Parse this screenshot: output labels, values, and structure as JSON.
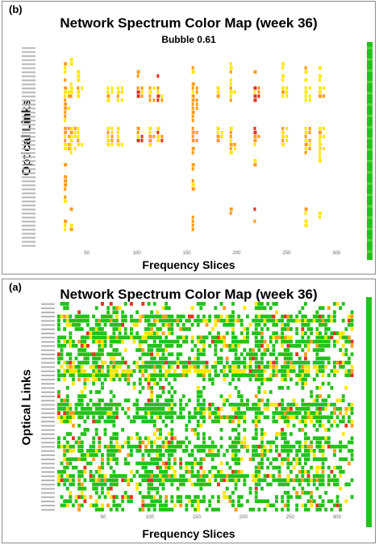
{
  "chart_data": [
    {
      "type": "heatmap",
      "panel_label": "(b)",
      "title": "Network Spectrum Color Map (week 36)",
      "subtitle": "Bubble 0.61",
      "xlabel": "Frequency Slices",
      "ylabel": "Optical Links",
      "xticks": [
        50,
        100,
        150,
        200,
        250,
        300
      ],
      "xlim": [
        1,
        320
      ],
      "row_count": 50,
      "colors": {
        "green": "#22c21b",
        "yellow": "#ffe600",
        "orange": "#ff9c1a",
        "red": "#e8321e"
      },
      "pattern": {
        "dense_rows": [
          10,
          11,
          12,
          13,
          14,
          15,
          20,
          21,
          22,
          23,
          24,
          25
        ],
        "columns": [
          {
            "x": 27,
            "rows": [
              3,
              4,
              5,
              6,
              7,
              8,
              9,
              10,
              11,
              12,
              13,
              14,
              15,
              16,
              17,
              18,
              19,
              20,
              21,
              22,
              23,
              24,
              25,
              26,
              27,
              28,
              29,
              30,
              31,
              32,
              33,
              34,
              35,
              36,
              37,
              38,
              39,
              40,
              41,
              42,
              43,
              44,
              45,
              46
            ],
            "levels": "orange-yellow"
          },
          {
            "x": 33,
            "rows": [
              3,
              4,
              5,
              6,
              8,
              9,
              10,
              11,
              12,
              20,
              21,
              22,
              23,
              24,
              25,
              26,
              40,
              41,
              43,
              44,
              45
            ],
            "levels": "yellow-orange"
          },
          {
            "x": 40,
            "rows": [
              5,
              6,
              7,
              8,
              9,
              10,
              11,
              12,
              20,
              21,
              22,
              23,
              24
            ],
            "levels": "yellow"
          },
          {
            "x": 70,
            "rows": [
              10,
              11,
              12,
              13,
              20,
              21,
              22,
              23,
              24
            ],
            "levels": "yellow"
          },
          {
            "x": 80,
            "rows": [
              10,
              11,
              12,
              13,
              20,
              21,
              22,
              23,
              24
            ],
            "levels": "yellow"
          },
          {
            "x": 100,
            "rows": [
              6,
              7,
              10,
              11,
              12,
              20,
              21,
              22,
              23
            ],
            "levels": "red-orange"
          },
          {
            "x": 112,
            "rows": [
              10,
              11,
              12,
              13,
              20,
              21,
              22,
              23,
              24
            ],
            "levels": "orange-yellow"
          },
          {
            "x": 120,
            "rows": [
              7,
              10,
              11,
              12,
              13,
              20,
              21,
              22,
              23
            ],
            "levels": "red-yellow"
          },
          {
            "x": 155,
            "rows": [
              5,
              6,
              9,
              10,
              11,
              12,
              13,
              14,
              15,
              16,
              17,
              18,
              19,
              20,
              21,
              22,
              23,
              25,
              26,
              27,
              28,
              29,
              30,
              33,
              34,
              35,
              40,
              41,
              42,
              43,
              44,
              45
            ],
            "levels": "orange"
          },
          {
            "x": 180,
            "rows": [
              10,
              11,
              12,
              20,
              21,
              22,
              23
            ],
            "levels": "yellow"
          },
          {
            "x": 193,
            "rows": [
              4,
              5,
              6,
              7,
              8,
              9,
              10,
              11,
              12,
              13,
              20,
              21,
              22,
              23,
              24,
              25,
              26,
              40,
              41,
              42,
              43,
              44
            ],
            "levels": "orange-yellow"
          },
          {
            "x": 217,
            "rows": [
              5,
              6,
              7,
              8,
              10,
              11,
              12,
              13,
              20,
              21,
              22,
              23,
              24,
              26,
              27,
              28,
              29,
              30,
              40,
              41,
              42,
              43
            ],
            "levels": "red-orange"
          },
          {
            "x": 245,
            "rows": [
              4,
              5,
              6,
              7,
              8,
              10,
              11,
              12,
              20,
              21,
              22,
              23,
              24
            ],
            "levels": "yellow"
          },
          {
            "x": 268,
            "rows": [
              5,
              6,
              7,
              8,
              10,
              11,
              12,
              13,
              20,
              21,
              22,
              23,
              24,
              25,
              26,
              40,
              41,
              42,
              43,
              44
            ],
            "levels": "yellow-orange"
          },
          {
            "x": 282,
            "rows": [
              5,
              6,
              7,
              8,
              10,
              11,
              12,
              20,
              21,
              22,
              23,
              24,
              25,
              26,
              27,
              28,
              29,
              40,
              41,
              42
            ],
            "levels": "yellow-orange"
          }
        ]
      }
    },
    {
      "type": "heatmap",
      "panel_label": "(a)",
      "title": "Network Spectrum Color Map (week 36)",
      "xlabel": "Frequency Slices",
      "ylabel": "Optical Links",
      "xticks": [
        50,
        100,
        150,
        200,
        250,
        300
      ],
      "xlim": [
        1,
        320
      ],
      "row_count": 50,
      "colors": {
        "green": "#22c21b",
        "yellow": "#ffe600",
        "orange": "#ff9c1a",
        "red": "#e8321e"
      },
      "pattern": {
        "dense_rows": [
          3,
          4,
          8,
          9,
          14,
          15,
          16,
          17,
          24,
          25,
          26,
          27,
          34,
          35,
          41,
          42
        ],
        "sparse_rows": [
          0,
          1,
          2,
          19,
          20,
          21,
          22,
          29,
          30,
          31,
          44,
          45
        ],
        "hot_columns": [
          10,
          27,
          45,
          60,
          100,
          112,
          120,
          155,
          193,
          217,
          245,
          268,
          282
        ],
        "fill_probability": 0.35,
        "level_mix": {
          "green": 0.78,
          "yellow": 0.12,
          "orange": 0.06,
          "red": 0.04
        }
      }
    }
  ]
}
